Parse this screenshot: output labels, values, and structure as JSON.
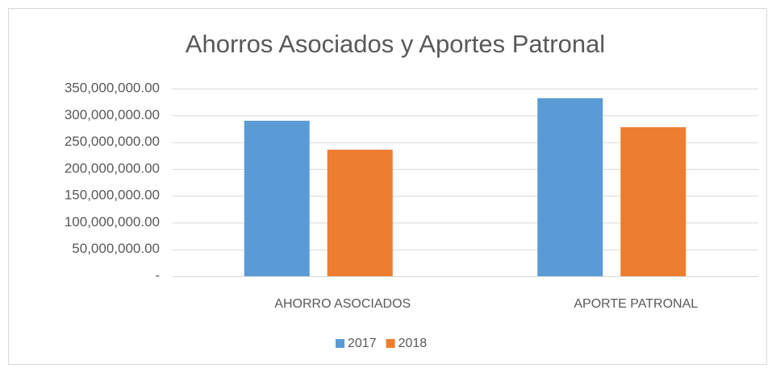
{
  "chart_data": {
    "type": "bar",
    "title": "Ahorros Asociados y Aportes Patronal",
    "categories": [
      "AHORRO ASOCIADOS",
      "APORTE PATRONAL"
    ],
    "series": [
      {
        "name": "2017",
        "color": "#5b9bd5",
        "values": [
          290000000,
          332000000
        ]
      },
      {
        "name": "2018",
        "color": "#ed7d31",
        "values": [
          236000000,
          278000000
        ]
      }
    ],
    "ylim": [
      0,
      350000000
    ],
    "yticks": [
      {
        "value": 0,
        "label": "-"
      },
      {
        "value": 50000000,
        "label": "50,000,000.00"
      },
      {
        "value": 100000000,
        "label": "100,000,000.00"
      },
      {
        "value": 150000000,
        "label": "150,000,000.00"
      },
      {
        "value": 200000000,
        "label": "200,000,000.00"
      },
      {
        "value": 250000000,
        "label": "250,000,000.00"
      },
      {
        "value": 300000000,
        "label": "300,000,000.00"
      },
      {
        "value": 350000000,
        "label": "350,000,000.00"
      }
    ],
    "grid": true,
    "legend": "bottom"
  }
}
